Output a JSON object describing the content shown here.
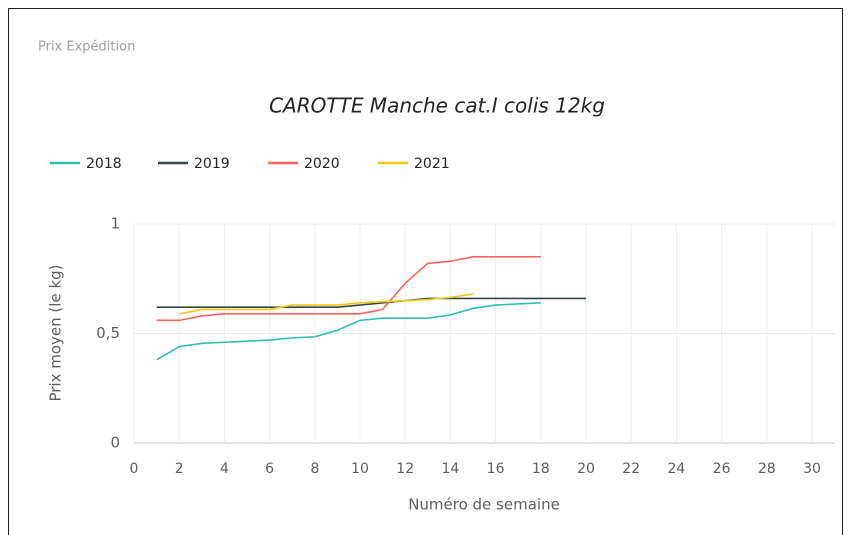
{
  "card_title": "Prix Expédition",
  "chart_data": {
    "type": "line",
    "title": "CAROTTE Manche cat.I colis 12kg",
    "x_label": "Numéro de semaine",
    "y_label": "Prix moyen  (le kg)",
    "xlim": [
      0,
      31
    ],
    "xticks": [
      0,
      2,
      4,
      6,
      8,
      10,
      12,
      14,
      16,
      18,
      20,
      22,
      24,
      26,
      28,
      30
    ],
    "ylim": [
      0,
      1
    ],
    "yticks": [
      0,
      {
        "value": 0.5,
        "label": "0,5"
      },
      1
    ],
    "grid": true,
    "legend": "top-left",
    "series": [
      {
        "name": "2018",
        "color": "#2dbfb3",
        "x": [
          1,
          2,
          3,
          4,
          5,
          6,
          7,
          8,
          9,
          10,
          11,
          12,
          13,
          14,
          15,
          16,
          17,
          18
        ],
        "values": [
          0.38,
          0.44,
          0.455,
          0.46,
          0.465,
          0.47,
          0.48,
          0.485,
          0.515,
          0.56,
          0.57,
          0.57,
          0.57,
          0.585,
          0.615,
          0.63,
          0.635,
          0.64
        ]
      },
      {
        "name": "2019",
        "color": "#374649",
        "x": [
          1,
          2,
          3,
          4,
          5,
          6,
          7,
          8,
          9,
          10,
          11,
          12,
          13,
          14,
          15,
          16,
          17,
          18,
          19,
          20
        ],
        "values": [
          0.62,
          0.62,
          0.62,
          0.62,
          0.62,
          0.62,
          0.62,
          0.62,
          0.62,
          0.63,
          0.64,
          0.65,
          0.66,
          0.66,
          0.66,
          0.66,
          0.66,
          0.66,
          0.66,
          0.66
        ]
      },
      {
        "name": "2020",
        "color": "#fd625e",
        "x": [
          1,
          2,
          3,
          4,
          5,
          6,
          7,
          8,
          9,
          10,
          11,
          12,
          13,
          14,
          15,
          16,
          17,
          18
        ],
        "values": [
          0.56,
          0.56,
          0.58,
          0.59,
          0.59,
          0.59,
          0.59,
          0.59,
          0.59,
          0.59,
          0.61,
          0.73,
          0.82,
          0.83,
          0.85,
          0.85,
          0.85,
          0.85
        ]
      },
      {
        "name": "2021",
        "color": "#f2c80f",
        "x": [
          2,
          3,
          4,
          5,
          6,
          7,
          8,
          9,
          10,
          11,
          12,
          13,
          14,
          15
        ],
        "values": [
          0.59,
          0.61,
          0.61,
          0.61,
          0.61,
          0.63,
          0.63,
          0.63,
          0.64,
          0.645,
          0.65,
          0.655,
          0.665,
          0.68
        ]
      }
    ]
  }
}
